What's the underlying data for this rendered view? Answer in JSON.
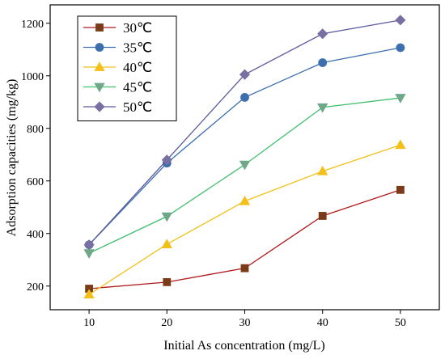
{
  "chart_data": {
    "type": "line",
    "xlabel": "Initial As concentration (mg/L)",
    "ylabel": "Adsorption capacities (mg/kg)",
    "x": [
      10,
      20,
      30,
      40,
      50
    ],
    "xticks": [
      10,
      20,
      30,
      40,
      50
    ],
    "yticks": [
      200,
      400,
      600,
      800,
      1000,
      1200
    ],
    "xlim": [
      5,
      55
    ],
    "ylim": [
      110,
      1270
    ],
    "grid": false,
    "legend_position": "top-left",
    "series": [
      {
        "name": "30℃",
        "marker": "square",
        "color": "#b0191c",
        "marker_color": "#7a3b18",
        "values": [
          190,
          215,
          268,
          467,
          566
        ]
      },
      {
        "name": "35℃",
        "marker": "circle",
        "color": "#3d6fad",
        "marker_color": "#3d6fad",
        "values": [
          357,
          668,
          918,
          1050,
          1107
        ]
      },
      {
        "name": "40℃",
        "marker": "triangle-up",
        "color": "#f2c018",
        "marker_color": "#f2c018",
        "values": [
          168,
          359,
          523,
          637,
          737
        ]
      },
      {
        "name": "45℃",
        "marker": "triangle-down",
        "color": "#3fbf6e",
        "marker_color": "#6fa888",
        "values": [
          325,
          465,
          662,
          880,
          916
        ]
      },
      {
        "name": "50℃",
        "marker": "diamond",
        "color": "#5b5b9f",
        "marker_color": "#7a6fa3",
        "values": [
          357,
          680,
          1005,
          1160,
          1212
        ]
      }
    ]
  }
}
